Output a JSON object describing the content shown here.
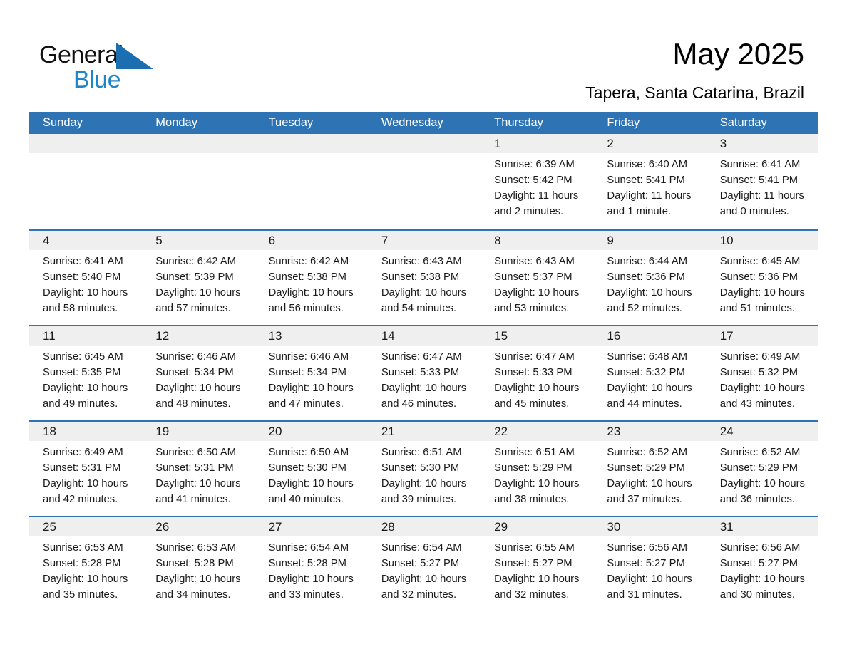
{
  "logo": {
    "general": "General",
    "blue": "Blue"
  },
  "header": {
    "title": "May 2025",
    "subtitle": "Tapera, Santa Catarina, Brazil"
  },
  "colors": {
    "header_bg": "#2e74b5",
    "row_divider": "#2e74b5",
    "day_band_bg": "#efefef",
    "logo_triangle": "#1b6fb0",
    "logo_blue_text": "#1d86c8",
    "weekday_text": "#ffffff",
    "body_text": "#1a1a1a"
  },
  "weekday_header": [
    "Sunday",
    "Monday",
    "Tuesday",
    "Wednesday",
    "Thursday",
    "Friday",
    "Saturday"
  ],
  "weeks": [
    [
      null,
      null,
      null,
      null,
      {
        "day": "1",
        "sunrise": "Sunrise: 6:39 AM",
        "sunset": "Sunset: 5:42 PM",
        "daylight": "Daylight: 11 hours and 2 minutes."
      },
      {
        "day": "2",
        "sunrise": "Sunrise: 6:40 AM",
        "sunset": "Sunset: 5:41 PM",
        "daylight": "Daylight: 11 hours and 1 minute."
      },
      {
        "day": "3",
        "sunrise": "Sunrise: 6:41 AM",
        "sunset": "Sunset: 5:41 PM",
        "daylight": "Daylight: 11 hours and 0 minutes."
      }
    ],
    [
      {
        "day": "4",
        "sunrise": "Sunrise: 6:41 AM",
        "sunset": "Sunset: 5:40 PM",
        "daylight": "Daylight: 10 hours and 58 minutes."
      },
      {
        "day": "5",
        "sunrise": "Sunrise: 6:42 AM",
        "sunset": "Sunset: 5:39 PM",
        "daylight": "Daylight: 10 hours and 57 minutes."
      },
      {
        "day": "6",
        "sunrise": "Sunrise: 6:42 AM",
        "sunset": "Sunset: 5:38 PM",
        "daylight": "Daylight: 10 hours and 56 minutes."
      },
      {
        "day": "7",
        "sunrise": "Sunrise: 6:43 AM",
        "sunset": "Sunset: 5:38 PM",
        "daylight": "Daylight: 10 hours and 54 minutes."
      },
      {
        "day": "8",
        "sunrise": "Sunrise: 6:43 AM",
        "sunset": "Sunset: 5:37 PM",
        "daylight": "Daylight: 10 hours and 53 minutes."
      },
      {
        "day": "9",
        "sunrise": "Sunrise: 6:44 AM",
        "sunset": "Sunset: 5:36 PM",
        "daylight": "Daylight: 10 hours and 52 minutes."
      },
      {
        "day": "10",
        "sunrise": "Sunrise: 6:45 AM",
        "sunset": "Sunset: 5:36 PM",
        "daylight": "Daylight: 10 hours and 51 minutes."
      }
    ],
    [
      {
        "day": "11",
        "sunrise": "Sunrise: 6:45 AM",
        "sunset": "Sunset: 5:35 PM",
        "daylight": "Daylight: 10 hours and 49 minutes."
      },
      {
        "day": "12",
        "sunrise": "Sunrise: 6:46 AM",
        "sunset": "Sunset: 5:34 PM",
        "daylight": "Daylight: 10 hours and 48 minutes."
      },
      {
        "day": "13",
        "sunrise": "Sunrise: 6:46 AM",
        "sunset": "Sunset: 5:34 PM",
        "daylight": "Daylight: 10 hours and 47 minutes."
      },
      {
        "day": "14",
        "sunrise": "Sunrise: 6:47 AM",
        "sunset": "Sunset: 5:33 PM",
        "daylight": "Daylight: 10 hours and 46 minutes."
      },
      {
        "day": "15",
        "sunrise": "Sunrise: 6:47 AM",
        "sunset": "Sunset: 5:33 PM",
        "daylight": "Daylight: 10 hours and 45 minutes."
      },
      {
        "day": "16",
        "sunrise": "Sunrise: 6:48 AM",
        "sunset": "Sunset: 5:32 PM",
        "daylight": "Daylight: 10 hours and 44 minutes."
      },
      {
        "day": "17",
        "sunrise": "Sunrise: 6:49 AM",
        "sunset": "Sunset: 5:32 PM",
        "daylight": "Daylight: 10 hours and 43 minutes."
      }
    ],
    [
      {
        "day": "18",
        "sunrise": "Sunrise: 6:49 AM",
        "sunset": "Sunset: 5:31 PM",
        "daylight": "Daylight: 10 hours and 42 minutes."
      },
      {
        "day": "19",
        "sunrise": "Sunrise: 6:50 AM",
        "sunset": "Sunset: 5:31 PM",
        "daylight": "Daylight: 10 hours and 41 minutes."
      },
      {
        "day": "20",
        "sunrise": "Sunrise: 6:50 AM",
        "sunset": "Sunset: 5:30 PM",
        "daylight": "Daylight: 10 hours and 40 minutes."
      },
      {
        "day": "21",
        "sunrise": "Sunrise: 6:51 AM",
        "sunset": "Sunset: 5:30 PM",
        "daylight": "Daylight: 10 hours and 39 minutes."
      },
      {
        "day": "22",
        "sunrise": "Sunrise: 6:51 AM",
        "sunset": "Sunset: 5:29 PM",
        "daylight": "Daylight: 10 hours and 38 minutes."
      },
      {
        "day": "23",
        "sunrise": "Sunrise: 6:52 AM",
        "sunset": "Sunset: 5:29 PM",
        "daylight": "Daylight: 10 hours and 37 minutes."
      },
      {
        "day": "24",
        "sunrise": "Sunrise: 6:52 AM",
        "sunset": "Sunset: 5:29 PM",
        "daylight": "Daylight: 10 hours and 36 minutes."
      }
    ],
    [
      {
        "day": "25",
        "sunrise": "Sunrise: 6:53 AM",
        "sunset": "Sunset: 5:28 PM",
        "daylight": "Daylight: 10 hours and 35 minutes."
      },
      {
        "day": "26",
        "sunrise": "Sunrise: 6:53 AM",
        "sunset": "Sunset: 5:28 PM",
        "daylight": "Daylight: 10 hours and 34 minutes."
      },
      {
        "day": "27",
        "sunrise": "Sunrise: 6:54 AM",
        "sunset": "Sunset: 5:28 PM",
        "daylight": "Daylight: 10 hours and 33 minutes."
      },
      {
        "day": "28",
        "sunrise": "Sunrise: 6:54 AM",
        "sunset": "Sunset: 5:27 PM",
        "daylight": "Daylight: 10 hours and 32 minutes."
      },
      {
        "day": "29",
        "sunrise": "Sunrise: 6:55 AM",
        "sunset": "Sunset: 5:27 PM",
        "daylight": "Daylight: 10 hours and 32 minutes."
      },
      {
        "day": "30",
        "sunrise": "Sunrise: 6:56 AM",
        "sunset": "Sunset: 5:27 PM",
        "daylight": "Daylight: 10 hours and 31 minutes."
      },
      {
        "day": "31",
        "sunrise": "Sunrise: 6:56 AM",
        "sunset": "Sunset: 5:27 PM",
        "daylight": "Daylight: 10 hours and 30 minutes."
      }
    ]
  ]
}
